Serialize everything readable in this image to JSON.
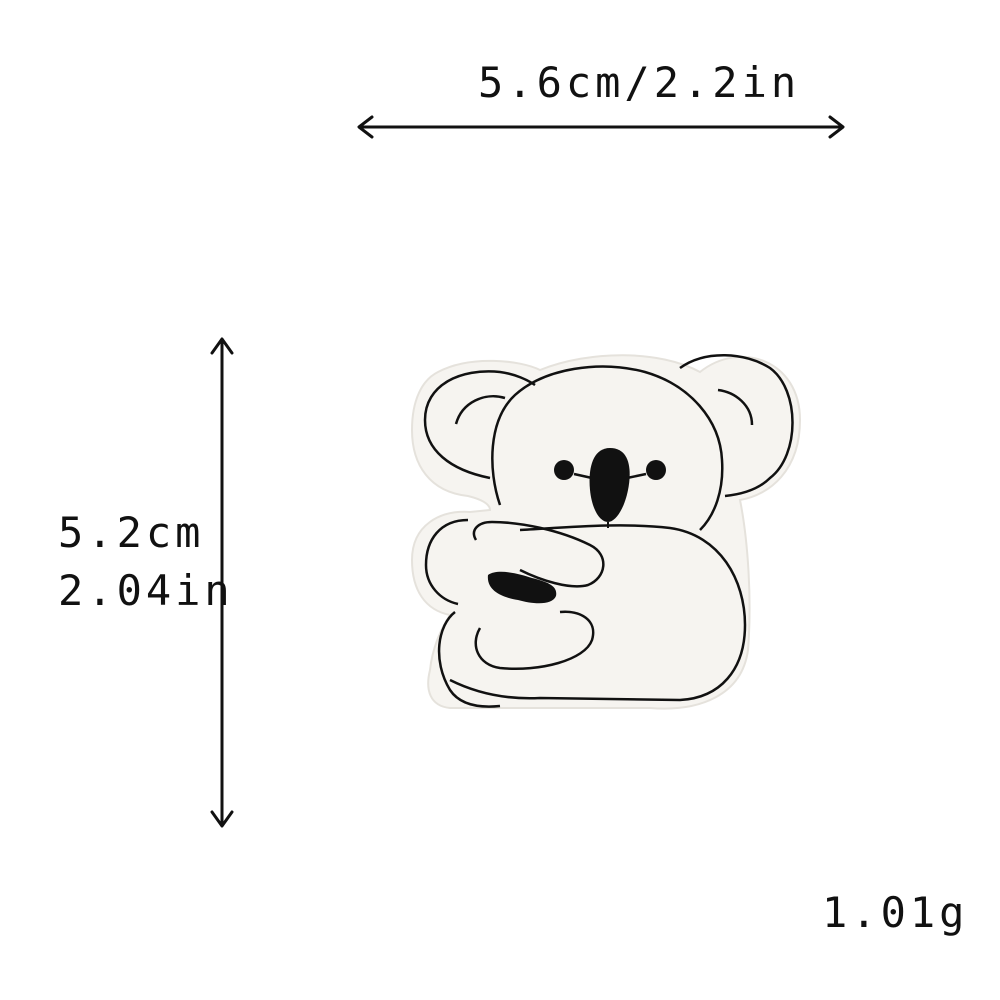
{
  "dimensions": {
    "width_text": "5.6cm/2.2in",
    "height_cm_text": "5.2cm",
    "height_in_text": "2.04in",
    "weight_text": "1.01g"
  },
  "image": {
    "subject_icon": "koala-icon",
    "patch_color": "#f6f4f0",
    "outline_color": "#111111"
  }
}
